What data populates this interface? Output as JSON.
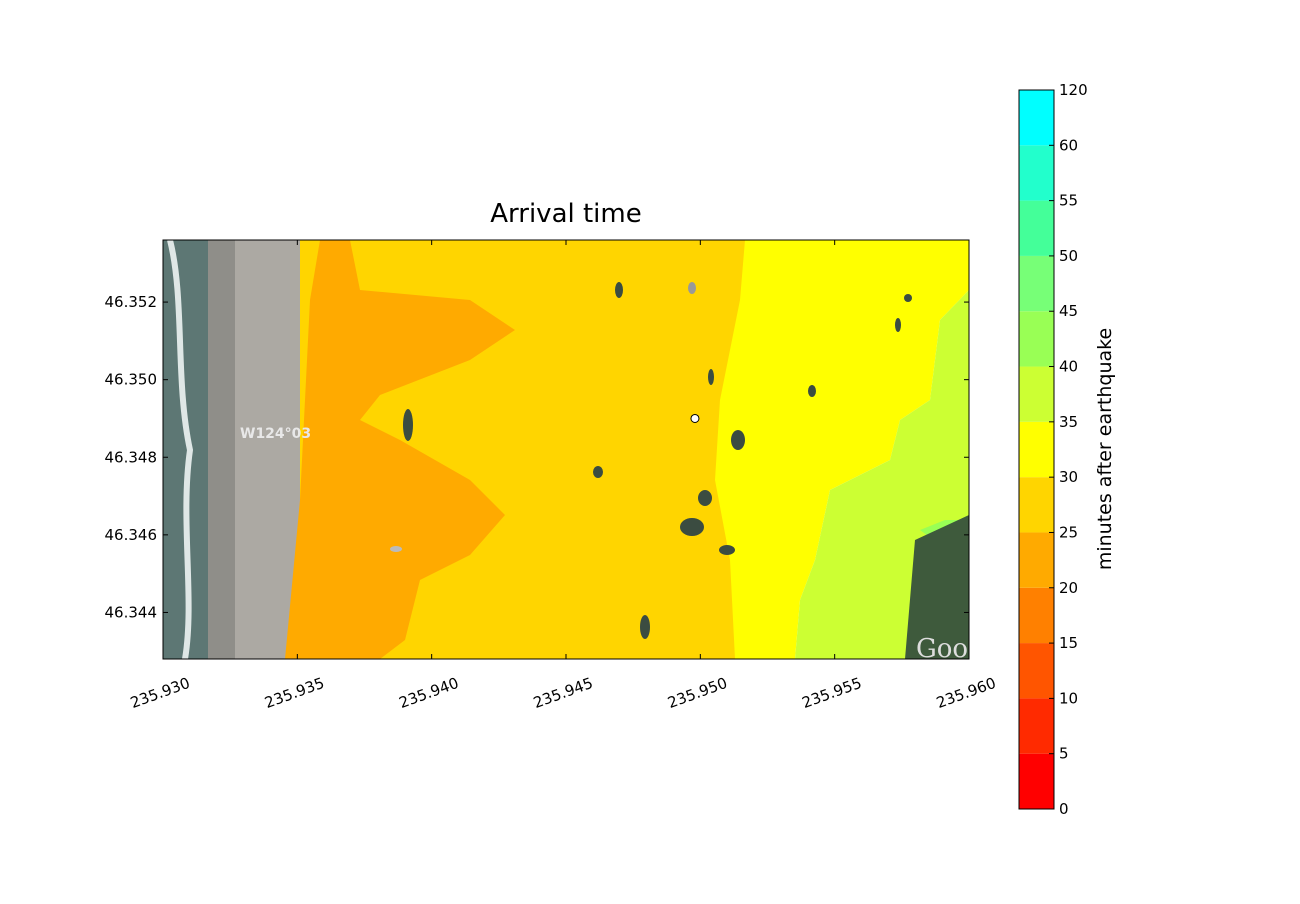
{
  "chart_data": {
    "type": "contourf",
    "title": "Arrival time",
    "xlim": [
      235.93,
      235.96
    ],
    "xticks": [
      {
        "value": 235.93,
        "label": "235.930"
      },
      {
        "value": 235.935,
        "label": "235.935"
      },
      {
        "value": 235.94,
        "label": "235.940"
      },
      {
        "value": 235.945,
        "label": "235.945"
      },
      {
        "value": 235.95,
        "label": "235.950"
      },
      {
        "value": 235.955,
        "label": "235.955"
      },
      {
        "value": 235.96,
        "label": "235.960"
      }
    ],
    "ylim": [
      46.3428,
      46.3536
    ],
    "yticks": [
      46.344,
      46.346,
      46.348,
      {
        "value": 46.35,
        "label": "46.350"
      },
      46.352
    ],
    "marker": {
      "x": 235.9498,
      "y": 46.349
    },
    "map_labels": [
      "W124°03",
      "Goo"
    ],
    "colorbar": {
      "label": "minutes after earthquake",
      "ticks": [
        0,
        5,
        10,
        15,
        20,
        25,
        30,
        35,
        40,
        45,
        50,
        55,
        60,
        120
      ],
      "colors": [
        "#ff0000",
        "#ff2a00",
        "#ff5500",
        "#ff8000",
        "#ffaa00",
        "#ffd500",
        "#ffff00",
        "#ccff33",
        "#99ff55",
        "#77ff77",
        "#44ff99",
        "#22ffcc",
        "#00ffff"
      ]
    }
  }
}
